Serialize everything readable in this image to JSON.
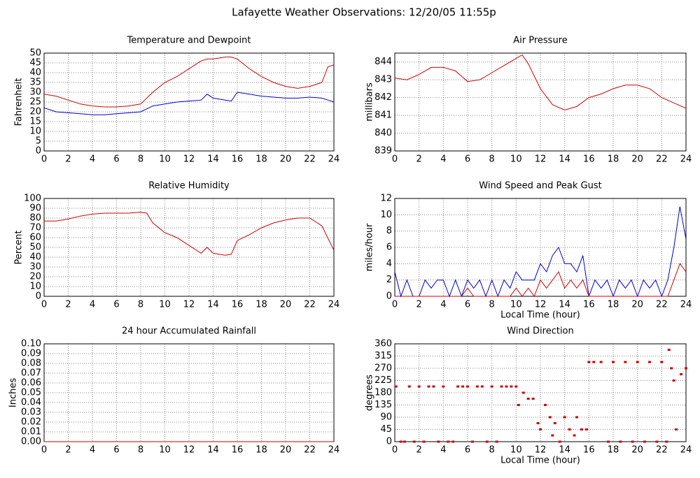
{
  "title": "Lafayette Weather Observations: 12/20/05 11:55p",
  "chart_data": [
    {
      "type": "line",
      "title": "Temperature and Dewpoint",
      "ylabel": "Fahrenheit",
      "x": [
        0,
        1,
        2,
        3,
        4,
        5,
        6,
        7,
        8,
        9,
        10,
        11,
        12,
        13,
        13.5,
        14,
        15,
        15.5,
        16,
        17,
        18,
        19,
        20,
        21,
        22,
        23,
        23.5,
        24
      ],
      "series": [
        {
          "name": "Temperature",
          "color": "#d00000",
          "values": [
            29,
            28,
            26,
            24,
            23,
            22.5,
            22.5,
            23,
            24,
            30,
            35,
            38,
            42,
            46,
            47,
            47,
            48,
            48,
            47,
            42,
            38,
            35,
            33,
            32,
            33,
            35,
            43,
            44
          ]
        },
        {
          "name": "Dewpoint",
          "color": "#0000d0",
          "values": [
            22,
            20,
            19.5,
            19,
            18.5,
            18.5,
            19,
            19.5,
            20,
            23,
            24,
            25,
            25.5,
            26,
            29,
            27,
            26,
            25.5,
            30,
            29,
            28,
            27.5,
            27,
            27,
            27.5,
            27,
            26,
            25
          ]
        }
      ],
      "xlim": [
        0,
        24
      ],
      "xticks": [
        0,
        2,
        4,
        6,
        8,
        10,
        12,
        14,
        16,
        18,
        20,
        22,
        24
      ],
      "ylim": [
        0,
        50
      ],
      "yticks": [
        0,
        5,
        10,
        15,
        20,
        25,
        30,
        35,
        40,
        45,
        50
      ],
      "grid": true
    },
    {
      "type": "line",
      "title": "Air Pressure",
      "ylabel": "millibars",
      "x": [
        0,
        1,
        2,
        3,
        4,
        5,
        6,
        7,
        8,
        9,
        10,
        10.5,
        11,
        12,
        13,
        14,
        15,
        16,
        17,
        18,
        19,
        20,
        21,
        22,
        23,
        24
      ],
      "series": [
        {
          "name": "Pressure",
          "color": "#d00000",
          "values": [
            843.1,
            843,
            843.3,
            843.7,
            843.7,
            843.5,
            842.9,
            843,
            843.4,
            843.8,
            844.2,
            844.4,
            843.9,
            842.5,
            841.6,
            841.3,
            841.5,
            842,
            842.2,
            842.5,
            842.7,
            842.7,
            842.5,
            842,
            841.7,
            841.4
          ]
        }
      ],
      "xlim": [
        0,
        24
      ],
      "xticks": [
        0,
        2,
        4,
        6,
        8,
        10,
        12,
        14,
        16,
        18,
        20,
        22,
        24
      ],
      "ylim": [
        839,
        844.5
      ],
      "yticks": [
        839,
        840,
        841,
        842,
        843,
        844
      ],
      "grid": true
    },
    {
      "type": "line",
      "title": "Relative Humidity",
      "ylabel": "Percent",
      "x": [
        0,
        1,
        2,
        3,
        4,
        5,
        6,
        7,
        8,
        8.5,
        9,
        10,
        11,
        12,
        13,
        13.5,
        14,
        15,
        15.5,
        16,
        17,
        18,
        19,
        20,
        21,
        22,
        23,
        24
      ],
      "series": [
        {
          "name": "Humidity",
          "color": "#d00000",
          "values": [
            77,
            77,
            79,
            82,
            84,
            85,
            85,
            85,
            86,
            85,
            75,
            65,
            60,
            52,
            44,
            50,
            44,
            42,
            43,
            57,
            63,
            70,
            75,
            78,
            80,
            80,
            72,
            47
          ]
        }
      ],
      "xlim": [
        0,
        24
      ],
      "xticks": [
        0,
        2,
        4,
        6,
        8,
        10,
        12,
        14,
        16,
        18,
        20,
        22,
        24
      ],
      "ylim": [
        0,
        100
      ],
      "yticks": [
        0,
        10,
        20,
        30,
        40,
        50,
        60,
        70,
        80,
        90,
        100
      ],
      "grid": true
    },
    {
      "type": "line",
      "title": "Wind Speed and Peak Gust",
      "ylabel": "miles/hour",
      "xlabel": "Local Time (hour)",
      "x": [
        0,
        0.5,
        1,
        1.5,
        2,
        2.5,
        3,
        3.5,
        4,
        4.5,
        5,
        5.5,
        6,
        6.5,
        7,
        7.5,
        8,
        8.5,
        9,
        9.5,
        10,
        10.5,
        11,
        11.5,
        12,
        12.5,
        13,
        13.5,
        14,
        14.5,
        15,
        15.5,
        16,
        16.5,
        17,
        17.5,
        18,
        18.5,
        19,
        19.5,
        20,
        20.5,
        21,
        21.5,
        22,
        22.5,
        23,
        23.5,
        24
      ],
      "series": [
        {
          "name": "Peak Gust",
          "color": "#0000d0",
          "values": [
            3,
            0,
            2,
            0,
            0,
            2,
            1,
            2,
            2,
            0,
            2,
            0,
            2,
            1,
            2,
            0,
            2,
            0,
            2,
            1,
            3,
            2,
            2,
            2,
            4,
            3,
            5,
            6,
            4,
            4,
            3,
            5,
            0,
            2,
            1,
            2,
            0,
            2,
            1,
            2,
            0,
            2,
            1,
            2,
            0,
            2,
            6,
            11,
            7
          ]
        },
        {
          "name": "Wind Speed",
          "color": "#d00000",
          "values": [
            0,
            0,
            0,
            0,
            0,
            0,
            0,
            0,
            0,
            0,
            0,
            0,
            1,
            0,
            0,
            0,
            0,
            0,
            0,
            0,
            1,
            0,
            1,
            0,
            2,
            1,
            2,
            3,
            1,
            2,
            1,
            2,
            0,
            0,
            0,
            0,
            0,
            0,
            0,
            0,
            0,
            0,
            0,
            0,
            0,
            0,
            2,
            4,
            3
          ]
        }
      ],
      "xlim": [
        0,
        24
      ],
      "xticks": [
        0,
        2,
        4,
        6,
        8,
        10,
        12,
        14,
        16,
        18,
        20,
        22,
        24
      ],
      "ylim": [
        0,
        12
      ],
      "yticks": [
        0,
        2,
        4,
        6,
        8,
        10,
        12
      ],
      "grid": true
    },
    {
      "type": "line",
      "title": "24 hour Accumulated Rainfall",
      "ylabel": "Inches",
      "x": [
        0,
        24
      ],
      "series": [
        {
          "name": "Rainfall",
          "color": "#d00000",
          "values": [
            0,
            0
          ]
        }
      ],
      "xlim": [
        0,
        24
      ],
      "xticks": [
        0,
        2,
        4,
        6,
        8,
        10,
        12,
        14,
        16,
        18,
        20,
        22,
        24
      ],
      "ylim": [
        0,
        0.1
      ],
      "yticks": [
        {
          "value": 0,
          "label": "0.00"
        },
        {
          "value": 0.01,
          "label": "0.01"
        },
        {
          "value": 0.02,
          "label": "0.02"
        },
        {
          "value": 0.03,
          "label": "0.03"
        },
        {
          "value": 0.04,
          "label": "0.04"
        },
        {
          "value": 0.05,
          "label": "0.05"
        },
        {
          "value": 0.06,
          "label": "0.06"
        },
        {
          "value": 0.07,
          "label": "0.07"
        },
        {
          "value": 0.08,
          "label": "0.08"
        },
        {
          "value": 0.09,
          "label": "0.09"
        },
        {
          "value": 0.1,
          "label": "0.10"
        }
      ],
      "grid": true
    },
    {
      "type": "scatter",
      "title": "Wind Direction",
      "ylabel": "degrees",
      "xlabel": "Local Time (hour)",
      "x": [
        0.1,
        0.5,
        0.8,
        1.2,
        1.6,
        2,
        2.4,
        2.8,
        3.2,
        3.6,
        4,
        4.4,
        4.8,
        5.2,
        5.6,
        6,
        6.4,
        6.8,
        7.2,
        7.6,
        8,
        8.4,
        8.8,
        9.2,
        9.6,
        10,
        10.2,
        10.6,
        11,
        11.4,
        11.8,
        12,
        12.4,
        12.8,
        13,
        13.2,
        13.6,
        14,
        14.4,
        14.8,
        15,
        15.4,
        15.8,
        16,
        16.4,
        17,
        17.6,
        18,
        18.6,
        19,
        19.6,
        20,
        20.6,
        21,
        21.6,
        22,
        22.4,
        22.6,
        22.8,
        23,
        23.2,
        23.6,
        24
      ],
      "series": [
        {
          "name": "Direction",
          "color": "#d00000",
          "values": [
            203,
            0,
            0,
            203,
            0,
            203,
            0,
            203,
            203,
            0,
            203,
            0,
            0,
            203,
            203,
            203,
            0,
            203,
            203,
            0,
            203,
            0,
            203,
            203,
            203,
            203,
            135,
            180,
            158,
            158,
            68,
            45,
            135,
            90,
            23,
            68,
            0,
            90,
            45,
            23,
            90,
            45,
            45,
            293,
            293,
            293,
            0,
            293,
            0,
            293,
            0,
            293,
            0,
            293,
            0,
            293,
            0,
            338,
            270,
            225,
            45,
            248,
            270
          ]
        }
      ],
      "xlim": [
        0,
        24
      ],
      "xticks": [
        0,
        2,
        4,
        6,
        8,
        10,
        12,
        14,
        16,
        18,
        20,
        22,
        24
      ],
      "ylim": [
        0,
        360
      ],
      "yticks": [
        0,
        45,
        90,
        135,
        180,
        225,
        270,
        315,
        360
      ],
      "grid": true
    }
  ]
}
